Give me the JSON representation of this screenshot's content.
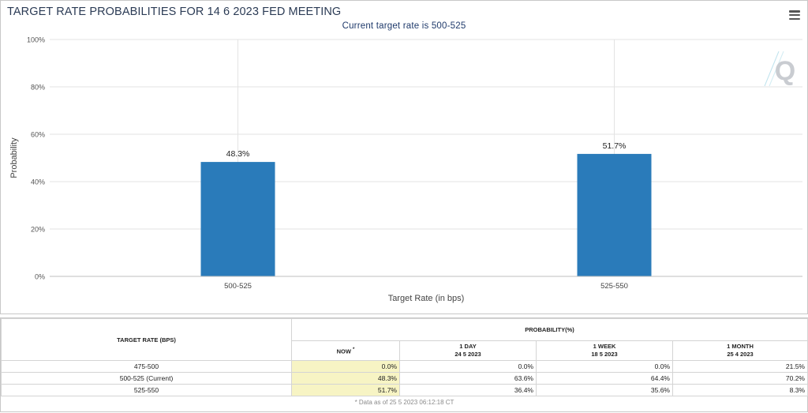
{
  "chart": {
    "title": "TARGET RATE PROBABILITIES FOR 14 6 2023 FED MEETING",
    "subtitle": "Current target rate is 500-525",
    "menu_icon": "hamburger-menu-icon",
    "watermark_letter": "Q"
  },
  "chart_data": {
    "type": "bar",
    "categories": [
      "500-525",
      "525-550"
    ],
    "values": [
      48.3,
      51.7
    ],
    "data_labels": [
      "48.3%",
      "51.7%"
    ],
    "title": "TARGET RATE PROBABILITIES FOR 14 6 2023 FED MEETING",
    "subtitle": "Current target rate is 500-525",
    "xlabel": "Target Rate (in bps)",
    "ylabel": "Probability",
    "ylim": [
      0,
      100
    ],
    "yticks": [
      "0%",
      "20%",
      "40%",
      "60%",
      "80%",
      "100%"
    ],
    "ytick_values": [
      0,
      20,
      40,
      60,
      80,
      100
    ],
    "grid": true,
    "bar_color": "#2a7bba"
  },
  "table": {
    "target_rate_header": "TARGET RATE (BPS)",
    "probability_header": "PROBABILITY(%)",
    "columns": [
      {
        "label": "NOW",
        "mark": "*",
        "date": ""
      },
      {
        "label": "1 DAY",
        "date": "24 5 2023"
      },
      {
        "label": "1 WEEK",
        "date": "18 5 2023"
      },
      {
        "label": "1 MONTH",
        "date": "25 4 2023"
      }
    ],
    "rows": [
      {
        "rate": "475-500",
        "values": [
          "0.0%",
          "0.0%",
          "0.0%",
          "21.5%"
        ]
      },
      {
        "rate": "500-525 (Current)",
        "values": [
          "48.3%",
          "63.6%",
          "64.4%",
          "70.2%"
        ]
      },
      {
        "rate": "525-550",
        "values": [
          "51.7%",
          "36.4%",
          "35.6%",
          "8.3%"
        ]
      }
    ],
    "footnote": "* Data as of 25 5 2023 06:12:18 CT"
  }
}
